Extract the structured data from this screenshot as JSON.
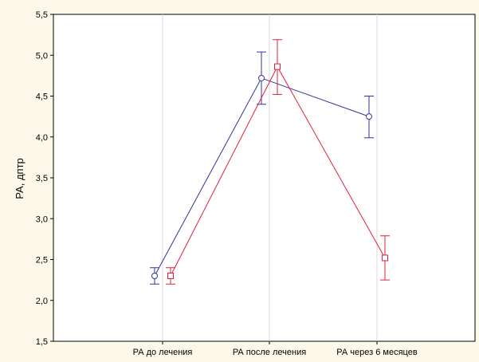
{
  "chart_data": {
    "type": "line",
    "title": "",
    "xlabel": "",
    "ylabel": "РА, дптр",
    "categories": [
      "РА до лечения",
      "РА после лечения",
      "РА через 6 месяцев"
    ],
    "y_ticks": [
      "1,5",
      "2,0",
      "2,5",
      "3,0",
      "3,5",
      "4,0",
      "4,5",
      "5,0",
      "5,5"
    ],
    "ylim": [
      1.5,
      5.5
    ],
    "grid": true,
    "legend": "none",
    "series": [
      {
        "marker": "circle",
        "color": "#33339a",
        "values": [
          2.3,
          4.72,
          4.25
        ],
        "error_low": [
          2.2,
          4.4,
          3.99
        ],
        "error_high": [
          2.4,
          5.04,
          4.5
        ]
      },
      {
        "marker": "square",
        "color": "#e0203a",
        "values": [
          2.3,
          4.86,
          2.52
        ],
        "error_low": [
          2.2,
          4.52,
          2.25
        ],
        "error_high": [
          2.4,
          5.19,
          2.79
        ]
      }
    ]
  }
}
